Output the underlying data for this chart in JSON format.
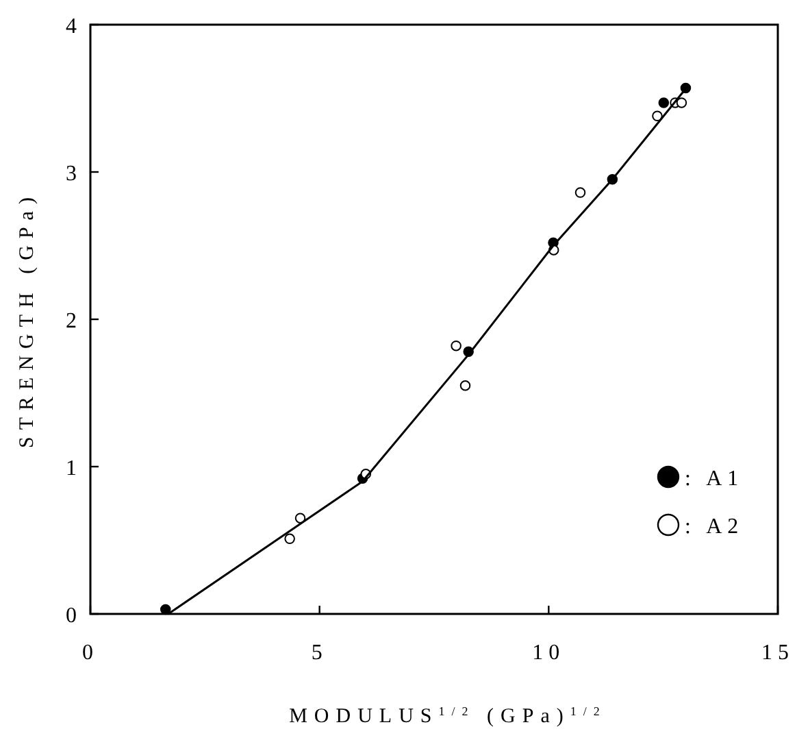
{
  "chart_data": {
    "type": "scatter",
    "xlabel": "MODULUS$^{1/2}$ (GPa)$^{1/2}$",
    "ylabel": "STRENGTH (GPa)",
    "xlim": [
      0,
      15
    ],
    "ylim": [
      0,
      4
    ],
    "xticks": [
      0,
      5,
      10,
      15
    ],
    "yticks": [
      0,
      1,
      2,
      3,
      4
    ],
    "grid": false,
    "legend": "bottom right",
    "marker": "circle",
    "series": [
      {
        "name": ": A1",
        "color": "#000000",
        "x": [
          1.64,
          5.94,
          8.25,
          10.1,
          11.39,
          12.51,
          12.99
        ],
        "values": [
          0.03,
          0.92,
          1.78,
          2.52,
          2.95,
          3.47,
          3.57
        ]
      },
      {
        "name": ": A2",
        "color": "#ffffff",
        "x": [
          4.35,
          4.58,
          6.01,
          7.98,
          8.18,
          10.11,
          10.69,
          12.37,
          12.76,
          12.9
        ],
        "values": [
          0.51,
          0.65,
          0.95,
          1.82,
          1.55,
          2.47,
          2.86,
          3.38,
          3.47,
          3.47
        ]
      },
      {
        "type": "line",
        "color": "#000000",
        "marker": "none",
        "x": [
          1.7,
          5.94,
          8.25,
          10.1,
          11.39,
          12.95
        ],
        "values": [
          0,
          0.9,
          1.76,
          2.5,
          2.95,
          3.55
        ]
      }
    ]
  }
}
